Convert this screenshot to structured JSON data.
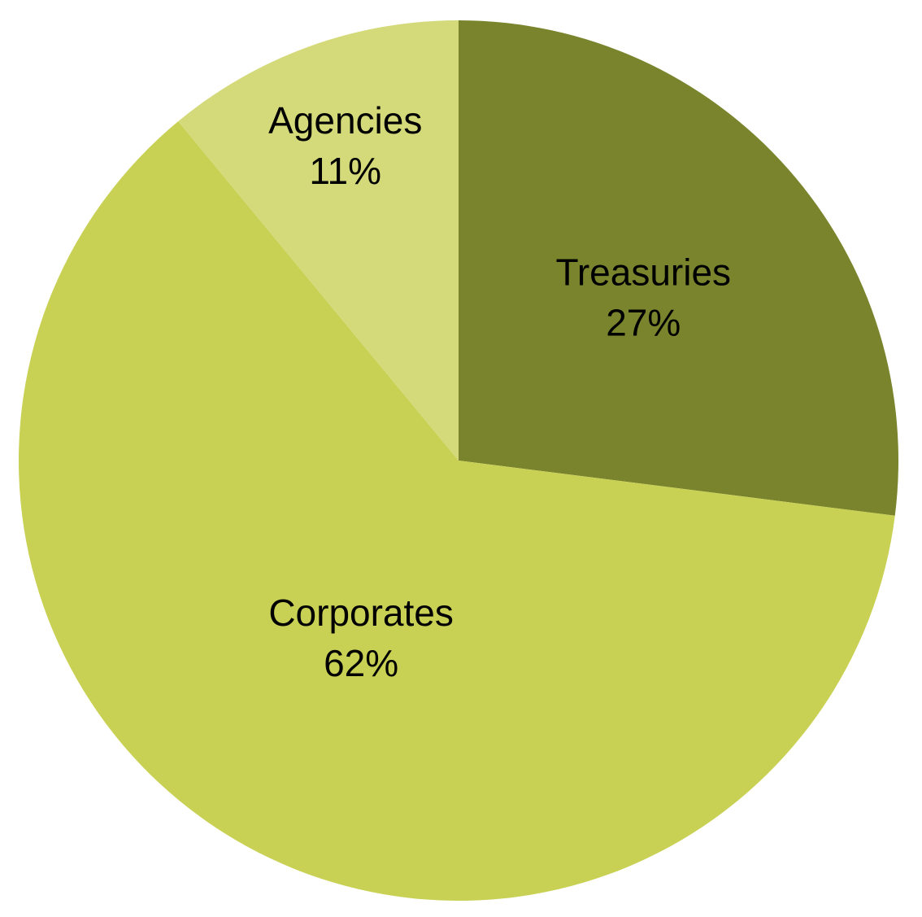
{
  "chart_data": {
    "type": "pie",
    "slices": [
      {
        "label": "Treasuries",
        "value": 27,
        "value_label": "27%",
        "color": "#7a842c"
      },
      {
        "label": "Corporates",
        "value": 62,
        "value_label": "62%",
        "color": "#c9d154"
      },
      {
        "label": "Agencies",
        "value": 11,
        "value_label": "11%",
        "color": "#d4da7a"
      }
    ],
    "start": "12 o'clock",
    "direction": "clockwise",
    "legend": "none"
  }
}
